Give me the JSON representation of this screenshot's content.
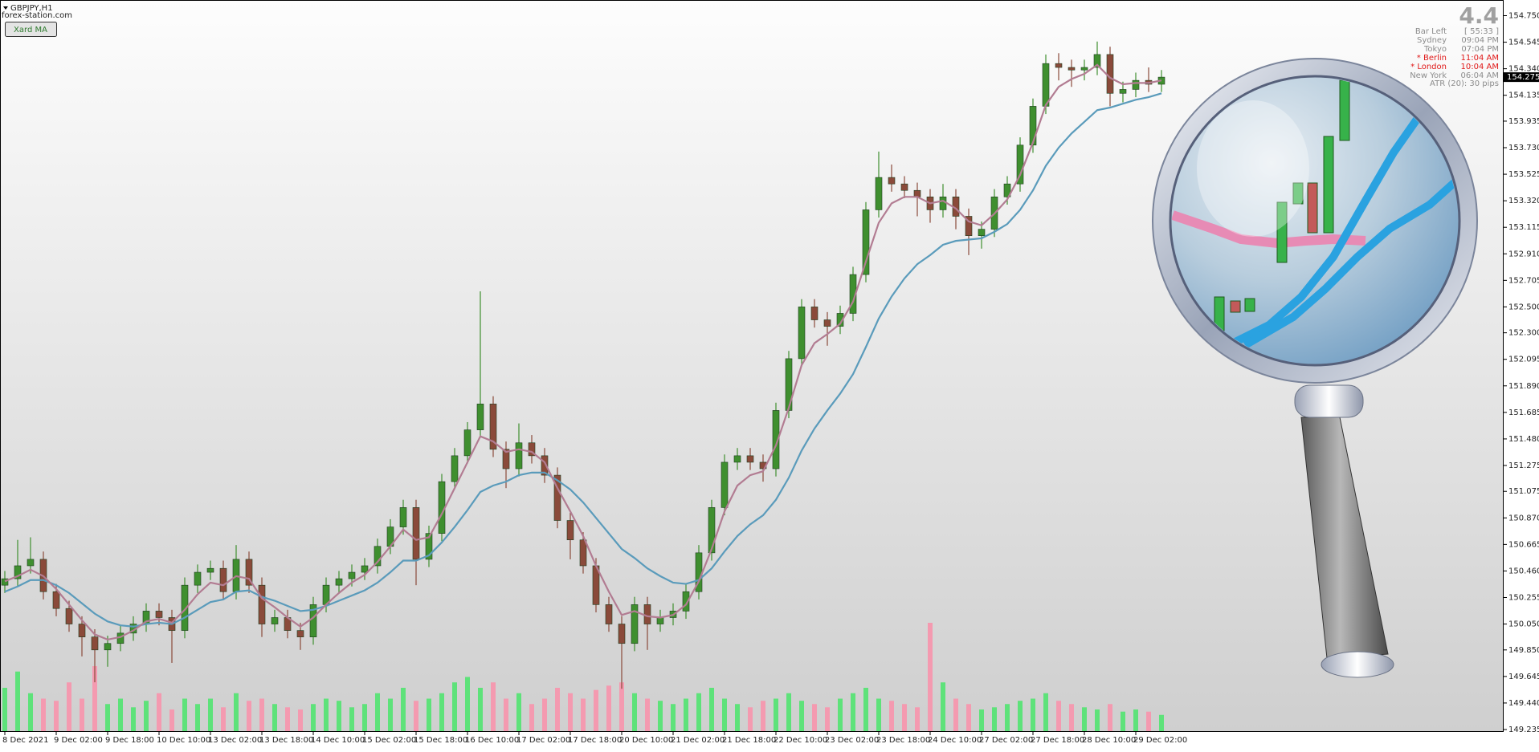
{
  "header": {
    "symbol": "GBPJPY,H1",
    "site": "forex-station.com",
    "button": "Xard MA"
  },
  "info": {
    "spread": "4.4",
    "rows": [
      {
        "label": "Bar Left",
        "time": "[ 55:33 ]",
        "color": "#8c8c8c"
      },
      {
        "label": "Sydney",
        "time": "09:04 PM",
        "color": "#8c8c8c"
      },
      {
        "label": "Tokyo",
        "time": "07:04 PM",
        "color": "#8c8c8c"
      },
      {
        "label": "* Berlin",
        "time": "11:04 AM",
        "color": "#e01818"
      },
      {
        "label": "* London",
        "time": "10:04 AM",
        "color": "#e01818"
      },
      {
        "label": "New York",
        "time": "06:04 AM",
        "color": "#8c8c8c"
      }
    ],
    "atr": "ATR (20): 30 pips"
  },
  "chart_data": {
    "type": "candlestick",
    "ylim": [
      149.235,
      154.75
    ],
    "yticks": [
      {
        "value": 154.75,
        "label": "154.750"
      },
      154.545,
      {
        "value": 154.34,
        "label": "154.340"
      },
      154.135,
      153.935,
      {
        "value": 153.73,
        "label": "153.730"
      },
      153.525,
      {
        "value": 153.32,
        "label": "153.320"
      },
      153.115,
      {
        "value": 152.91,
        "label": "152.910"
      },
      152.705,
      {
        "value": 152.5,
        "label": "152.500"
      },
      {
        "value": 152.3,
        "label": "152.300"
      },
      152.095,
      {
        "value": 151.89,
        "label": "151.890"
      },
      151.685,
      {
        "value": 151.48,
        "label": "151.480"
      },
      151.275,
      151.075,
      {
        "value": 150.87,
        "label": "150.870"
      },
      150.665,
      {
        "value": 150.46,
        "label": "150.460"
      },
      150.255,
      {
        "value": 150.05,
        "label": "150.050"
      },
      {
        "value": 149.85,
        "label": "149.850"
      },
      149.645,
      {
        "value": 149.44,
        "label": "149.440"
      },
      149.235
    ],
    "xticks": [
      {
        "value": 0,
        "label": "8 Dec 2021"
      },
      {
        "value": 4,
        "label": "9 Dec 02:00"
      },
      {
        "value": 8,
        "label": "9 Dec 18:00"
      },
      {
        "value": 12,
        "label": "10 Dec 10:00"
      },
      {
        "value": 16,
        "label": "13 Dec 02:00"
      },
      {
        "value": 20,
        "label": "13 Dec 18:00"
      },
      {
        "value": 24,
        "label": "14 Dec 10:00"
      },
      {
        "value": 28,
        "label": "15 Dec 02:00"
      },
      {
        "value": 32,
        "label": "15 Dec 18:00"
      },
      {
        "value": 36,
        "label": "16 Dec 10:00"
      },
      {
        "value": 40,
        "label": "17 Dec 02:00"
      },
      {
        "value": 44,
        "label": "17 Dec 18:00"
      },
      {
        "value": 48,
        "label": "20 Dec 10:00"
      },
      {
        "value": 52,
        "label": "21 Dec 02:00"
      },
      {
        "value": 56,
        "label": "21 Dec 18:00"
      },
      {
        "value": 60,
        "label": "22 Dec 10:00"
      },
      {
        "value": 64,
        "label": "23 Dec 02:00"
      },
      {
        "value": 68,
        "label": "23 Dec 18:00"
      },
      {
        "value": 72,
        "label": "24 Dec 10:00"
      },
      {
        "value": 76,
        "label": "27 Dec 02:00"
      },
      {
        "value": 80,
        "label": "27 Dec 18:00"
      },
      {
        "value": 84,
        "label": "28 Dec 10:00"
      },
      {
        "value": 88,
        "label": "29 Dec 02:00"
      }
    ],
    "last_price": 154.275,
    "bull_color": "#3f8f2f",
    "bear_color": "#8a4a3a",
    "volume_up_color": "#5ee27a",
    "volume_down_color": "#f49ab0",
    "open": [
      150.35,
      150.4,
      150.5,
      150.55,
      150.3,
      150.17,
      150.05,
      149.95,
      149.85,
      149.9,
      149.98,
      150.05,
      150.15,
      150.1,
      150.0,
      150.35,
      150.45,
      150.48,
      150.3,
      150.55,
      150.35,
      150.05,
      150.1,
      150.0,
      149.95,
      150.2,
      150.35,
      150.4,
      150.45,
      150.5,
      150.65,
      150.8,
      150.95,
      150.55,
      150.75,
      151.15,
      151.35,
      151.55,
      151.75,
      151.4,
      151.25,
      151.45,
      151.35,
      151.2,
      150.85,
      150.7,
      150.5,
      150.2,
      150.05,
      149.9,
      150.2,
      150.05,
      150.1,
      150.15,
      150.3,
      150.6,
      150.95,
      151.3,
      151.35,
      151.3,
      151.25,
      151.7,
      152.1,
      152.5,
      152.4,
      152.35,
      152.45,
      152.75,
      153.25,
      153.5,
      153.45,
      153.4,
      153.35,
      153.25,
      153.35,
      153.2,
      153.05,
      153.1,
      153.35,
      153.45,
      153.75,
      154.05,
      154.38,
      154.35,
      154.33,
      154.35,
      154.45,
      154.15,
      154.18,
      154.25,
      154.22
    ],
    "high": [
      150.46,
      150.7,
      150.72,
      150.61,
      150.36,
      150.23,
      150.11,
      150.01,
      149.96,
      150.04,
      150.11,
      150.21,
      150.21,
      150.16,
      150.41,
      150.51,
      150.54,
      150.54,
      150.66,
      150.61,
      150.41,
      150.16,
      150.16,
      150.06,
      150.26,
      150.41,
      150.46,
      150.51,
      150.56,
      150.71,
      150.86,
      151.01,
      151.01,
      150.81,
      151.21,
      151.41,
      151.61,
      152.62,
      151.81,
      151.46,
      151.6,
      151.51,
      151.41,
      151.26,
      150.91,
      150.76,
      150.56,
      150.26,
      150.11,
      150.26,
      150.26,
      150.16,
      150.21,
      150.36,
      150.66,
      151.01,
      151.36,
      151.41,
      151.41,
      151.36,
      151.76,
      152.16,
      152.56,
      152.56,
      152.46,
      152.51,
      152.81,
      153.31,
      153.7,
      153.6,
      153.51,
      153.46,
      153.41,
      153.45,
      153.41,
      153.26,
      153.16,
      153.41,
      153.51,
      153.81,
      154.11,
      154.45,
      154.46,
      154.41,
      154.41,
      154.55,
      154.51,
      154.24,
      154.31,
      154.35,
      154.33
    ],
    "low": [
      150.29,
      150.34,
      150.44,
      150.24,
      150.11,
      149.99,
      149.8,
      149.6,
      149.72,
      149.84,
      149.92,
      149.99,
      150.04,
      149.75,
      149.94,
      150.29,
      150.39,
      150.24,
      150.24,
      150.29,
      149.95,
      149.99,
      149.94,
      149.85,
      149.89,
      150.14,
      150.29,
      150.34,
      150.39,
      150.44,
      150.59,
      150.74,
      150.35,
      150.49,
      150.69,
      151.09,
      151.29,
      151.49,
      151.34,
      151.1,
      151.19,
      151.29,
      151.14,
      150.79,
      150.55,
      150.44,
      150.14,
      149.99,
      149.55,
      149.84,
      149.85,
      149.99,
      150.04,
      150.09,
      150.24,
      150.54,
      150.89,
      151.24,
      151.24,
      151.15,
      151.19,
      151.64,
      152.04,
      152.34,
      152.2,
      152.29,
      152.39,
      152.69,
      153.19,
      153.39,
      153.34,
      153.2,
      153.15,
      153.19,
      153.1,
      152.9,
      152.95,
      153.04,
      153.29,
      153.39,
      153.69,
      153.99,
      154.25,
      154.2,
      154.25,
      154.29,
      154.05,
      154.08,
      154.12,
      154.16,
      154.16
    ],
    "close": [
      150.4,
      150.5,
      150.55,
      150.3,
      150.17,
      150.05,
      149.95,
      149.85,
      149.9,
      149.98,
      150.05,
      150.15,
      150.1,
      150.0,
      150.35,
      150.45,
      150.48,
      150.3,
      150.55,
      150.35,
      150.05,
      150.1,
      150.0,
      149.95,
      150.2,
      150.35,
      150.4,
      150.45,
      150.5,
      150.65,
      150.8,
      150.95,
      150.55,
      150.75,
      151.15,
      151.35,
      151.55,
      151.75,
      151.4,
      151.25,
      151.45,
      151.35,
      151.2,
      150.85,
      150.7,
      150.5,
      150.2,
      150.05,
      149.9,
      150.2,
      150.05,
      150.1,
      150.15,
      150.3,
      150.6,
      150.95,
      151.3,
      151.35,
      151.3,
      151.25,
      151.7,
      152.1,
      152.5,
      152.4,
      152.35,
      152.45,
      152.75,
      153.25,
      153.5,
      153.45,
      153.4,
      153.35,
      153.25,
      153.35,
      153.2,
      153.05,
      153.1,
      153.35,
      153.45,
      153.75,
      154.05,
      154.38,
      154.35,
      154.33,
      154.35,
      154.45,
      154.15,
      154.18,
      154.25,
      154.22,
      154.275
    ],
    "volume": [
      40,
      55,
      35,
      30,
      28,
      45,
      30,
      60,
      25,
      30,
      22,
      28,
      35,
      20,
      30,
      25,
      30,
      22,
      35,
      28,
      30,
      25,
      22,
      20,
      25,
      30,
      28,
      22,
      25,
      35,
      30,
      40,
      28,
      30,
      35,
      45,
      50,
      40,
      45,
      30,
      35,
      25,
      30,
      40,
      35,
      30,
      38,
      42,
      45,
      35,
      30,
      28,
      25,
      30,
      35,
      40,
      30,
      25,
      22,
      28,
      30,
      35,
      28,
      25,
      22,
      30,
      35,
      40,
      30,
      28,
      25,
      22,
      100,
      45,
      30,
      25,
      20,
      22,
      25,
      28,
      30,
      35,
      28,
      25,
      22,
      20,
      25,
      18,
      20,
      18,
      15
    ],
    "ma_fast": {
      "color": "#b27c92",
      "values": [
        150.38,
        150.42,
        150.47,
        150.42,
        150.32,
        150.2,
        150.08,
        149.97,
        149.93,
        149.95,
        150.0,
        150.07,
        150.09,
        150.06,
        150.16,
        150.28,
        150.37,
        150.35,
        150.42,
        150.4,
        150.25,
        150.18,
        150.1,
        150.03,
        150.1,
        150.2,
        150.29,
        150.37,
        150.43,
        150.53,
        150.65,
        150.78,
        150.7,
        150.72,
        150.9,
        151.1,
        151.3,
        151.5,
        151.46,
        151.38,
        151.4,
        151.38,
        151.3,
        151.1,
        150.92,
        150.73,
        150.5,
        150.3,
        150.12,
        150.15,
        150.11,
        150.1,
        150.12,
        150.2,
        150.38,
        150.63,
        150.92,
        151.12,
        151.2,
        151.23,
        151.43,
        151.72,
        152.05,
        152.22,
        152.29,
        152.37,
        152.54,
        152.85,
        153.15,
        153.3,
        153.35,
        153.35,
        153.3,
        153.32,
        153.26,
        153.16,
        153.13,
        153.22,
        153.33,
        153.52,
        153.77,
        154.06,
        154.2,
        154.26,
        154.3,
        154.37,
        154.27,
        154.22,
        154.23,
        154.23,
        154.25
      ]
    },
    "ma_slow": {
      "color": "#5a9bbb",
      "values": [
        150.3,
        150.34,
        150.39,
        150.39,
        150.35,
        150.29,
        150.21,
        150.13,
        150.07,
        150.04,
        150.03,
        150.05,
        150.06,
        150.05,
        150.1,
        150.16,
        150.22,
        150.24,
        150.3,
        150.31,
        150.26,
        150.23,
        150.19,
        150.15,
        150.16,
        150.19,
        150.23,
        150.27,
        150.31,
        150.37,
        150.45,
        150.54,
        150.54,
        150.58,
        150.68,
        150.8,
        150.93,
        151.07,
        151.12,
        151.15,
        151.2,
        151.22,
        151.22,
        151.16,
        151.09,
        150.99,
        150.87,
        150.75,
        150.63,
        150.56,
        150.48,
        150.42,
        150.37,
        150.36,
        150.39,
        150.48,
        150.61,
        150.73,
        150.82,
        150.89,
        151.01,
        151.18,
        151.39,
        151.56,
        151.7,
        151.83,
        151.98,
        152.19,
        152.41,
        152.58,
        152.72,
        152.83,
        152.9,
        152.98,
        153.01,
        153.02,
        153.03,
        153.08,
        153.14,
        153.25,
        153.4,
        153.59,
        153.73,
        153.84,
        153.93,
        154.02,
        154.04,
        154.07,
        154.1,
        154.12,
        154.15
      ]
    }
  }
}
